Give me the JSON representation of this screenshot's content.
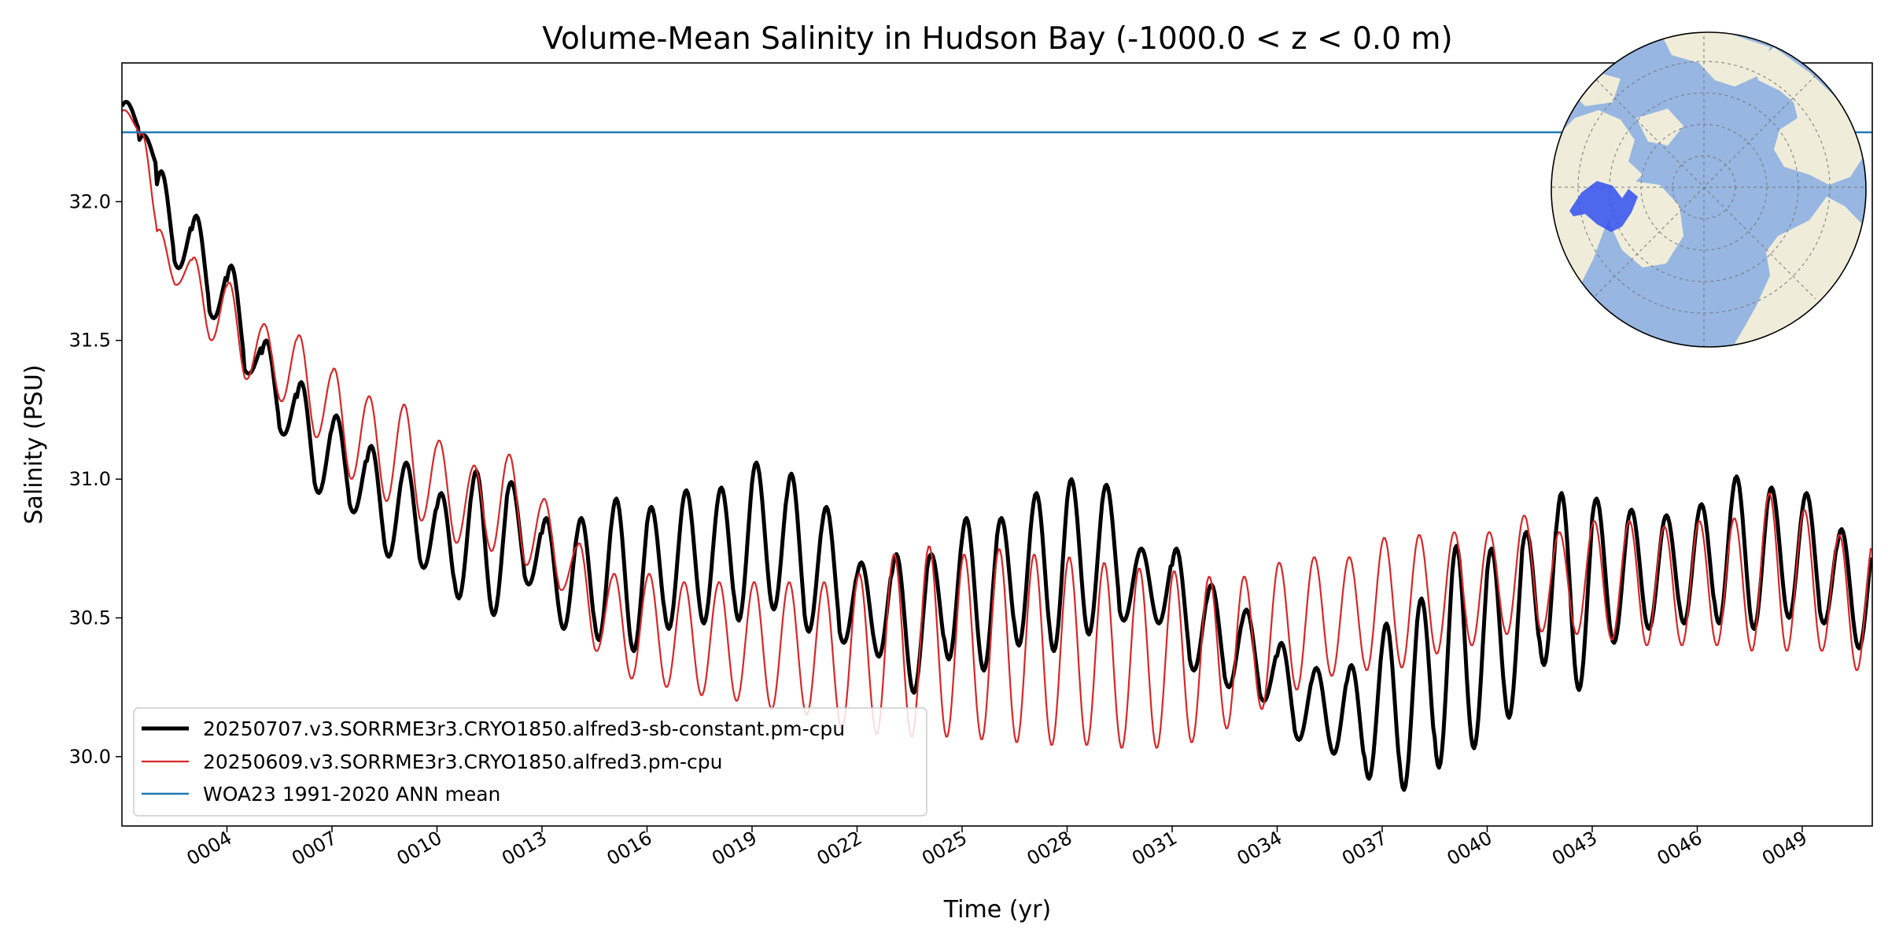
{
  "chart_data": {
    "type": "line",
    "title": "Volume-Mean Salinity in Hudson Bay (-1000.0 < z < 0.0 m)",
    "xlabel": "Time (yr)",
    "ylabel": "Salinity (PSU)",
    "xlim": [
      1.0,
      51.0
    ],
    "ylim": [
      29.75,
      32.5
    ],
    "x_ticks": [
      4,
      7,
      10,
      13,
      16,
      19,
      22,
      25,
      28,
      31,
      34,
      37,
      40,
      43,
      46,
      49
    ],
    "x_tick_labels": [
      "0004",
      "0007",
      "0010",
      "0013",
      "0016",
      "0019",
      "0022",
      "0025",
      "0028",
      "0031",
      "0034",
      "0037",
      "0040",
      "0043",
      "0046",
      "0049"
    ],
    "y_ticks": [
      30.0,
      30.5,
      31.0,
      31.5,
      32.0
    ],
    "y_tick_labels": [
      "30.0",
      "30.5",
      "31.0",
      "31.5",
      "32.0"
    ],
    "grid": false,
    "legend_position": "lower-left",
    "series": [
      {
        "name": "20250707.v3.SORRME3r3.CRYO1850.alfred3-sb-constant.pm-cpu",
        "color": "#000000",
        "style": "thick",
        "annual_cycle": {
          "years": [
            1,
            2,
            3,
            4,
            5,
            6,
            7,
            8,
            9,
            10,
            11,
            12,
            13,
            14,
            15,
            16,
            17,
            18,
            19,
            20,
            21,
            22,
            23,
            24,
            25,
            26,
            27,
            28,
            29,
            30,
            31,
            32,
            33,
            34,
            35,
            36,
            37,
            38,
            39,
            40,
            41,
            42,
            43,
            44,
            45,
            46,
            47,
            48,
            49,
            50
          ],
          "max": [
            32.36,
            32.11,
            31.95,
            31.77,
            31.5,
            31.35,
            31.23,
            31.12,
            31.06,
            30.95,
            31.03,
            30.99,
            30.86,
            30.86,
            30.93,
            30.9,
            30.96,
            30.97,
            31.06,
            31.02,
            30.9,
            30.7,
            30.73,
            30.73,
            30.86,
            30.86,
            30.95,
            31.0,
            30.98,
            30.75,
            30.75,
            30.62,
            30.53,
            30.41,
            30.32,
            30.33,
            30.48,
            30.57,
            30.76,
            30.75,
            30.81,
            30.95,
            30.93,
            30.89,
            30.87,
            30.91,
            31.01,
            30.97,
            30.95,
            30.82
          ],
          "min": [
            32.24,
            31.76,
            31.58,
            31.38,
            31.16,
            30.95,
            30.88,
            30.72,
            30.68,
            30.57,
            30.51,
            30.62,
            30.46,
            30.42,
            30.38,
            30.46,
            30.48,
            30.49,
            30.53,
            30.45,
            30.41,
            30.36,
            30.23,
            30.35,
            30.31,
            30.4,
            30.38,
            30.44,
            30.49,
            30.48,
            30.31,
            30.25,
            30.2,
            30.06,
            30.01,
            29.92,
            29.88,
            29.96,
            30.03,
            30.14,
            30.33,
            30.24,
            30.41,
            30.46,
            30.48,
            30.48,
            30.46,
            30.5,
            30.48,
            30.39
          ]
        }
      },
      {
        "name": "20250609.v3.SORRME3r3.CRYO1850.alfred3.pm-cpu",
        "color": "#d62728",
        "style": "thin",
        "annual_cycle": {
          "years": [
            1,
            2,
            3,
            4,
            5,
            6,
            7,
            8,
            9,
            10,
            11,
            12,
            13,
            14,
            15,
            16,
            17,
            18,
            19,
            20,
            21,
            22,
            23,
            24,
            25,
            26,
            27,
            28,
            29,
            30,
            31,
            32,
            33,
            34,
            35,
            36,
            37,
            38,
            39,
            40,
            41,
            42,
            43,
            44,
            45,
            46,
            47,
            48,
            49,
            50
          ],
          "max": [
            32.33,
            31.9,
            31.8,
            31.71,
            31.56,
            31.52,
            31.4,
            31.3,
            31.27,
            31.14,
            31.05,
            31.09,
            30.93,
            30.77,
            30.66,
            30.66,
            30.63,
            30.63,
            30.63,
            30.63,
            30.63,
            30.66,
            30.73,
            30.76,
            30.73,
            30.75,
            30.73,
            30.72,
            30.7,
            30.68,
            30.67,
            30.65,
            30.65,
            30.7,
            30.72,
            30.72,
            30.79,
            30.8,
            30.81,
            30.81,
            30.87,
            30.81,
            30.85,
            30.85,
            30.83,
            30.85,
            30.86,
            30.95,
            30.89,
            30.8
          ],
          "min": [
            32.25,
            31.7,
            31.5,
            31.36,
            31.28,
            31.15,
            31.0,
            30.92,
            30.85,
            30.77,
            30.74,
            30.69,
            30.6,
            30.38,
            30.28,
            30.25,
            30.22,
            30.2,
            30.17,
            30.15,
            30.1,
            30.08,
            30.07,
            30.07,
            30.06,
            30.05,
            30.04,
            30.04,
            30.03,
            30.03,
            30.05,
            30.1,
            30.17,
            30.24,
            30.29,
            30.31,
            30.32,
            30.37,
            30.4,
            30.44,
            30.45,
            30.44,
            30.42,
            30.4,
            30.4,
            30.4,
            30.38,
            30.38,
            30.38,
            30.31
          ]
        }
      },
      {
        "name": "WOA23 1991-2020 ANN mean",
        "color": "#1f77b4",
        "style": "hline",
        "value": 32.25
      }
    ],
    "inset_map": {
      "projection": "north-polar-stereographic",
      "land_color": "#efedda",
      "ocean_color": "#97b6e1",
      "highlight_region_color": "#3050f0",
      "highlight_region": "Hudson Bay"
    }
  }
}
